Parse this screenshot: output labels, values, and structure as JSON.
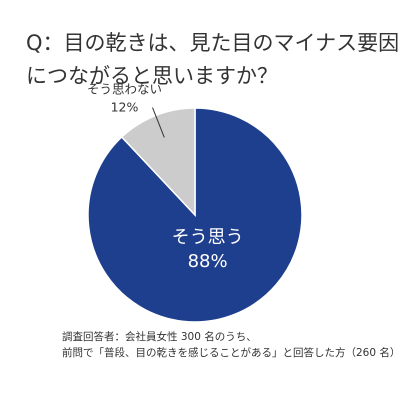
{
  "chart_data": {
    "type": "pie",
    "title_lines": [
      "Q：目の乾きは、見た目のマイナス要因",
      "につながると思いますか？"
    ],
    "slices": [
      {
        "label": "そう思う",
        "value": 88,
        "value_label": "88%",
        "color": "#1e3f8d"
      },
      {
        "label": "そう思わない",
        "value": 12,
        "value_label": "12%",
        "color": "#cccccc"
      }
    ]
  },
  "note_lines": [
    "調査回答者：会社員女性 300 名のうち、",
    "前問で「普段、目の乾きを感じることがある」と回答した方（260 名）"
  ],
  "colors": {
    "slice_border": "#ffffff",
    "leader_line": "#333333",
    "label_inside": "#ffffff",
    "label_outside": "#333333"
  }
}
